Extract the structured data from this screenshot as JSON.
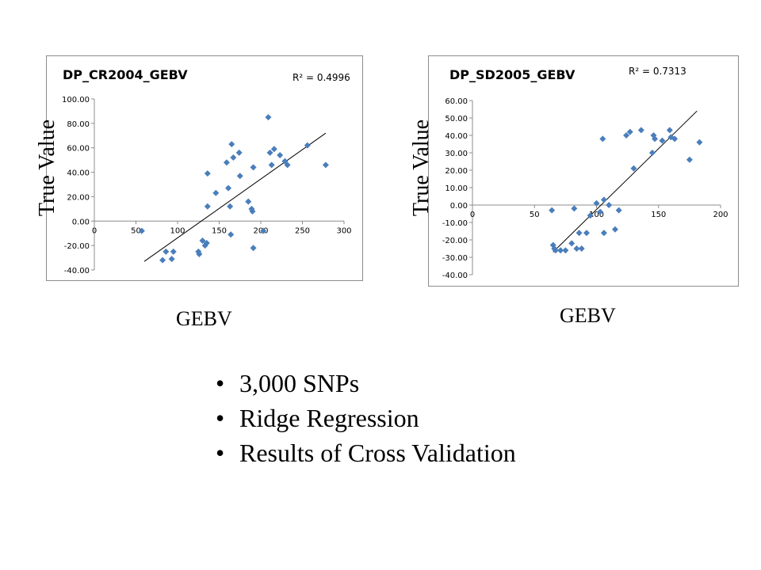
{
  "chart_data": [
    {
      "type": "scatter",
      "title": "DP_CR2004_GEBV",
      "annotation": "R² = 0.4996",
      "xlabel": "GEBV",
      "ylabel": "True Value",
      "xlim": [
        0,
        300
      ],
      "ylim": [
        -40,
        100
      ],
      "x_ticks": [
        "0",
        "50",
        "100",
        "150",
        "200",
        "250",
        "300"
      ],
      "y_ticks": [
        "-40.00",
        "-20.00",
        "0.00",
        "20.00",
        "40.00",
        "60.00",
        "80.00",
        "100.00"
      ],
      "grid": false,
      "trendline": {
        "type": "linear",
        "x_range": [
          60,
          278
        ],
        "y_range": [
          -33,
          72
        ]
      },
      "points": [
        [
          57,
          -8
        ],
        [
          82,
          -32
        ],
        [
          86,
          -25
        ],
        [
          93,
          -31
        ],
        [
          95,
          -25
        ],
        [
          125,
          -25
        ],
        [
          126,
          -27
        ],
        [
          130,
          -16
        ],
        [
          133,
          -20
        ],
        [
          135,
          -18
        ],
        [
          136,
          39
        ],
        [
          136,
          12
        ],
        [
          146,
          23
        ],
        [
          159,
          48
        ],
        [
          161,
          27
        ],
        [
          163,
          12
        ],
        [
          164,
          -11
        ],
        [
          165,
          63
        ],
        [
          167,
          52
        ],
        [
          174,
          56
        ],
        [
          175,
          37
        ],
        [
          185,
          16
        ],
        [
          189,
          10
        ],
        [
          190,
          8
        ],
        [
          191,
          44
        ],
        [
          191,
          -22
        ],
        [
          203,
          -8
        ],
        [
          209,
          85
        ],
        [
          211,
          56
        ],
        [
          213,
          46
        ],
        [
          216,
          59
        ],
        [
          223,
          54
        ],
        [
          229,
          49
        ],
        [
          232,
          46
        ],
        [
          256,
          62
        ],
        [
          278,
          46
        ]
      ]
    },
    {
      "type": "scatter",
      "title": "DP_SD2005_GEBV",
      "annotation": "R² = 0.7313",
      "xlabel": "GEBV",
      "ylabel": "True Value",
      "xlim": [
        0,
        200
      ],
      "ylim": [
        -40,
        60
      ],
      "x_ticks": [
        "0",
        "50",
        "100",
        "150",
        "200"
      ],
      "y_ticks": [
        "-40.00",
        "-30.00",
        "-20.00",
        "-10.00",
        "0.00",
        "10.00",
        "20.00",
        "30.00",
        "40.00",
        "50.00",
        "60.00"
      ],
      "grid": false,
      "trendline": {
        "type": "linear",
        "x_range": [
          65,
          181
        ],
        "y_range": [
          -27,
          54
        ]
      },
      "points": [
        [
          64,
          -3
        ],
        [
          65,
          -23
        ],
        [
          66,
          -25
        ],
        [
          67,
          -26
        ],
        [
          71,
          -26
        ],
        [
          75,
          -26
        ],
        [
          80,
          -22
        ],
        [
          82,
          -2
        ],
        [
          84,
          -25
        ],
        [
          86,
          -16
        ],
        [
          88,
          -25
        ],
        [
          92,
          -16
        ],
        [
          95,
          -6
        ],
        [
          100,
          1
        ],
        [
          103,
          -4
        ],
        [
          105,
          38
        ],
        [
          106,
          3
        ],
        [
          106,
          -16
        ],
        [
          110,
          0
        ],
        [
          115,
          -14
        ],
        [
          118,
          -3
        ],
        [
          124,
          40
        ],
        [
          127,
          42
        ],
        [
          130,
          21
        ],
        [
          136,
          43
        ],
        [
          145,
          30
        ],
        [
          146,
          40
        ],
        [
          147,
          38
        ],
        [
          153,
          37
        ],
        [
          159,
          43
        ],
        [
          160,
          39
        ],
        [
          163,
          38
        ],
        [
          175,
          26
        ],
        [
          183,
          36
        ]
      ]
    }
  ],
  "bullets": [
    "3,000 SNPs",
    "Ridge Regression",
    "Results of Cross Validation"
  ],
  "bullet_char": "•",
  "colors": {
    "marker": "#4a7ebb",
    "trendline": "#000000",
    "axis": "#8c8c8c"
  }
}
